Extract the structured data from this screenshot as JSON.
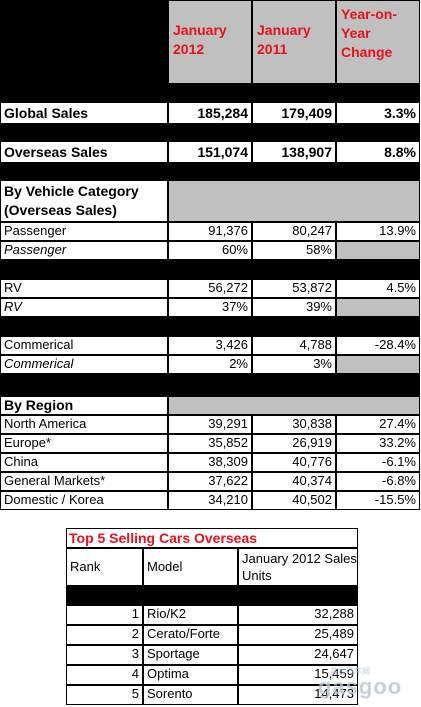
{
  "header": {
    "col1": "January 2012",
    "col2": "January 2011",
    "col3": "Year-on-Year Change"
  },
  "global_sales": {
    "label": "Global Sales",
    "jan2012": "185,284",
    "jan2011": "179,409",
    "change": "3.3%"
  },
  "overseas_sales": {
    "label": "Overseas Sales",
    "jan2012": "151,074",
    "jan2011": "138,907",
    "change": "8.8%"
  },
  "vehicle_category": {
    "title": "By Vehicle Category (Overseas Sales)",
    "groups": [
      {
        "label": "Passenger",
        "jan2012": "91,376",
        "jan2011": "80,247",
        "change": "13.9%",
        "share_label": "Passenger",
        "share2012": "60%",
        "share2011": "58%"
      },
      {
        "label": "RV",
        "jan2012": "56,272",
        "jan2011": "53,872",
        "change": "4.5%",
        "share_label": "RV",
        "share2012": "37%",
        "share2011": "39%"
      },
      {
        "label": "Commerical",
        "jan2012": "3,426",
        "jan2011": "4,788",
        "change": "-28.4%",
        "share_label": "Commerical",
        "share2012": "2%",
        "share2011": "3%"
      }
    ]
  },
  "region": {
    "title": "By Region",
    "rows": [
      {
        "label": "North America",
        "jan2012": "39,291",
        "jan2011": "30,838",
        "change": "27.4%"
      },
      {
        "label": "Europe*",
        "jan2012": "35,852",
        "jan2011": "26,919",
        "change": "33.2%"
      },
      {
        "label": "China",
        "jan2012": "38,309",
        "jan2011": "40,776",
        "change": "-6.1%"
      },
      {
        "label": "General Markets*",
        "jan2012": "37,622",
        "jan2011": "40,374",
        "change": "-6.8%"
      },
      {
        "label": "Domestic / Korea",
        "jan2012": "34,210",
        "jan2011": "40,502",
        "change": "-15.5%"
      }
    ]
  },
  "top5": {
    "title": "Top 5 Selling Cars Overseas",
    "col_rank": "Rank",
    "col_model": "Model",
    "col_units": "January 2012 Sales Units",
    "rows": [
      {
        "rank": "1",
        "model": "Rio/K2",
        "units": "32,288"
      },
      {
        "rank": "2",
        "model": "Cerato/Forte",
        "units": "25,489"
      },
      {
        "rank": "3",
        "model": "Sportage",
        "units": "24,647"
      },
      {
        "rank": "4",
        "model": "Optima",
        "units": "15,459"
      },
      {
        "rank": "5",
        "model": "Sorento",
        "units": "14,473"
      }
    ]
  },
  "watermark": {
    "logo": "gasgoo",
    "small": "盖世汽车网"
  }
}
